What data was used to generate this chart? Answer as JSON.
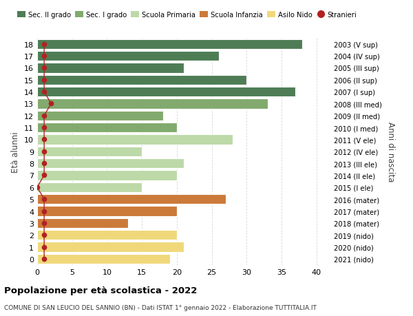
{
  "ages": [
    18,
    17,
    16,
    15,
    14,
    13,
    12,
    11,
    10,
    9,
    8,
    7,
    6,
    5,
    4,
    3,
    2,
    1,
    0
  ],
  "values": [
    38,
    26,
    21,
    30,
    37,
    33,
    18,
    20,
    28,
    15,
    21,
    20,
    15,
    27,
    20,
    13,
    20,
    21,
    19
  ],
  "stranieri_vals": [
    1,
    1,
    1,
    1,
    1,
    2,
    1,
    1,
    1,
    1,
    1,
    1,
    0,
    1,
    1,
    1,
    1,
    1,
    1
  ],
  "right_labels": [
    "2003 (V sup)",
    "2004 (IV sup)",
    "2005 (III sup)",
    "2006 (II sup)",
    "2007 (I sup)",
    "2008 (III med)",
    "2009 (II med)",
    "2010 (I med)",
    "2011 (V ele)",
    "2012 (IV ele)",
    "2013 (III ele)",
    "2014 (II ele)",
    "2015 (I ele)",
    "2016 (mater)",
    "2017 (mater)",
    "2018 (mater)",
    "2019 (nido)",
    "2020 (nido)",
    "2021 (nido)"
  ],
  "bar_colors": [
    "#4e7d55",
    "#4e7d55",
    "#4e7d55",
    "#4e7d55",
    "#4e7d55",
    "#82aa6e",
    "#82aa6e",
    "#82aa6e",
    "#bdd9a8",
    "#bdd9a8",
    "#bdd9a8",
    "#bdd9a8",
    "#bdd9a8",
    "#cc7a3a",
    "#cc7a3a",
    "#cc7a3a",
    "#f0d87a",
    "#f0d87a",
    "#f0d87a"
  ],
  "legend_labels": [
    "Sec. II grado",
    "Sec. I grado",
    "Scuola Primaria",
    "Scuola Infanzia",
    "Asilo Nido",
    "Stranieri"
  ],
  "legend_colors": [
    "#4e7d55",
    "#82aa6e",
    "#bdd9a8",
    "#cc7a3a",
    "#f0d87a",
    "#b22222"
  ],
  "ylabel": "Età alunni",
  "right_ylabel": "Anni di nascita",
  "title": "Popolazione per età scolastica - 2022",
  "subtitle": "COMUNE DI SAN LEUCIO DEL SANNIO (BN) - Dati ISTAT 1° gennaio 2022 - Elaborazione TUTTITALIA.IT",
  "xlim": [
    0,
    42
  ],
  "xticks": [
    0,
    5,
    10,
    15,
    20,
    25,
    30,
    35,
    40
  ],
  "background_color": "#ffffff",
  "grid_color": "#d8d8d8",
  "stranieri_color": "#b22222",
  "bar_height": 0.82
}
